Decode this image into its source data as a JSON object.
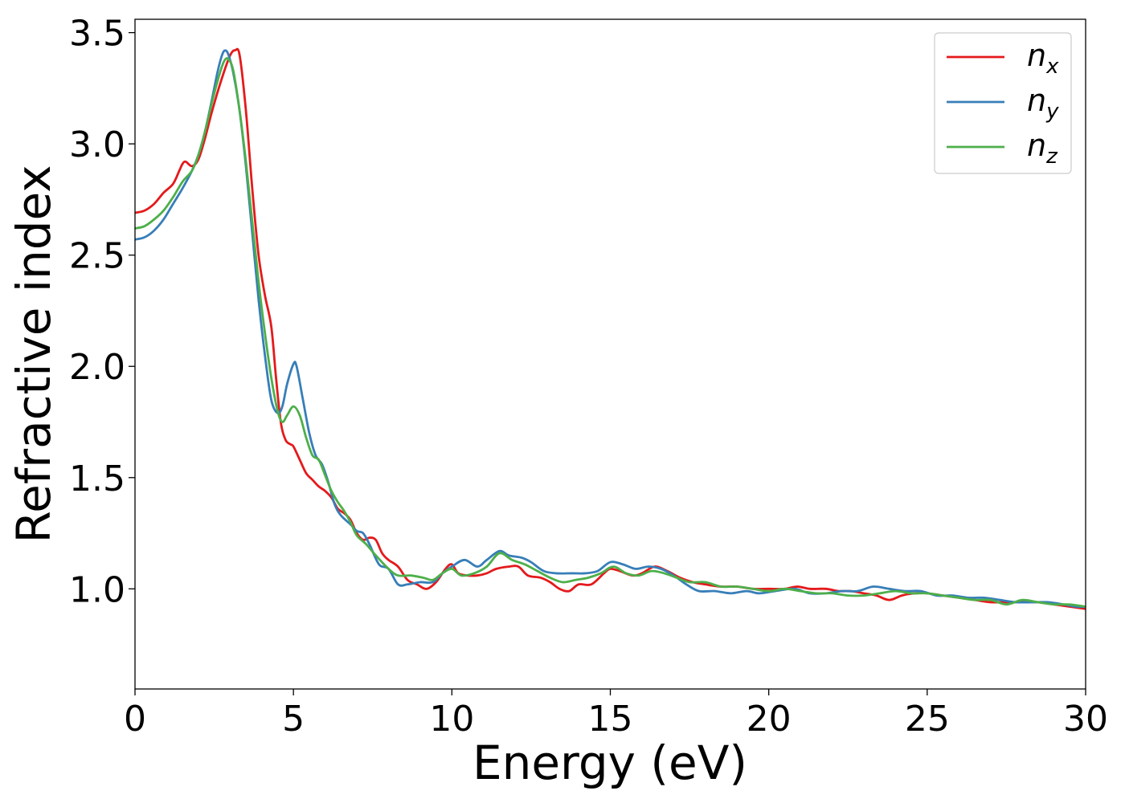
{
  "chart_data": {
    "type": "line",
    "xlabel": "Energy (eV)",
    "ylabel": "Refractive index",
    "xlim": [
      0,
      30
    ],
    "ylim": [
      0.55,
      3.56
    ],
    "xticks": [
      0,
      5,
      10,
      15,
      20,
      25,
      30
    ],
    "xtick_labels": [
      "0",
      "5",
      "10",
      "15",
      "20",
      "25",
      "30"
    ],
    "yticks": [
      1.0,
      1.5,
      2.0,
      2.5,
      3.0,
      3.5
    ],
    "ytick_labels": [
      "1.0",
      "1.5",
      "2.0",
      "2.5",
      "3.0",
      "3.5"
    ],
    "grid": false,
    "legend_position": "top-right",
    "series": [
      {
        "name": "n",
        "subscript": "x",
        "color": "#e41a1c",
        "points": [
          [
            0,
            2.69
          ],
          [
            0.3,
            2.7
          ],
          [
            0.6,
            2.73
          ],
          [
            0.9,
            2.78
          ],
          [
            1.2,
            2.82
          ],
          [
            1.4,
            2.88
          ],
          [
            1.5,
            2.91
          ],
          [
            1.6,
            2.92
          ],
          [
            1.8,
            2.9
          ],
          [
            2.0,
            2.93
          ],
          [
            2.2,
            3.02
          ],
          [
            2.4,
            3.13
          ],
          [
            2.6,
            3.23
          ],
          [
            2.8,
            3.32
          ],
          [
            2.95,
            3.38
          ],
          [
            3.05,
            3.41
          ],
          [
            3.15,
            3.42
          ],
          [
            3.3,
            3.4
          ],
          [
            3.5,
            3.15
          ],
          [
            3.7,
            2.8
          ],
          [
            3.9,
            2.5
          ],
          [
            4.1,
            2.32
          ],
          [
            4.3,
            2.18
          ],
          [
            4.45,
            1.95
          ],
          [
            4.6,
            1.75
          ],
          [
            4.75,
            1.67
          ],
          [
            4.9,
            1.65
          ],
          [
            5.0,
            1.64
          ],
          [
            5.2,
            1.58
          ],
          [
            5.4,
            1.52
          ],
          [
            5.6,
            1.49
          ],
          [
            5.8,
            1.46
          ],
          [
            6.0,
            1.44
          ],
          [
            6.2,
            1.41
          ],
          [
            6.4,
            1.36
          ],
          [
            6.6,
            1.34
          ],
          [
            6.8,
            1.31
          ],
          [
            7.0,
            1.25
          ],
          [
            7.2,
            1.22
          ],
          [
            7.4,
            1.23
          ],
          [
            7.6,
            1.22
          ],
          [
            7.8,
            1.16
          ],
          [
            8.0,
            1.13
          ],
          [
            8.3,
            1.1
          ],
          [
            8.6,
            1.04
          ],
          [
            8.9,
            1.02
          ],
          [
            9.2,
            1.0
          ],
          [
            9.5,
            1.03
          ],
          [
            9.8,
            1.09
          ],
          [
            10.0,
            1.11
          ],
          [
            10.2,
            1.07
          ],
          [
            10.5,
            1.06
          ],
          [
            10.8,
            1.06
          ],
          [
            11.1,
            1.07
          ],
          [
            11.4,
            1.09
          ],
          [
            11.8,
            1.1
          ],
          [
            12.1,
            1.1
          ],
          [
            12.4,
            1.06
          ],
          [
            12.8,
            1.05
          ],
          [
            13.1,
            1.03
          ],
          [
            13.4,
            1.0
          ],
          [
            13.7,
            0.99
          ],
          [
            14.0,
            1.02
          ],
          [
            14.4,
            1.02
          ],
          [
            14.8,
            1.07
          ],
          [
            15.0,
            1.09
          ],
          [
            15.3,
            1.08
          ],
          [
            15.7,
            1.06
          ],
          [
            16.0,
            1.07
          ],
          [
            16.4,
            1.1
          ],
          [
            16.8,
            1.08
          ],
          [
            17.2,
            1.05
          ],
          [
            17.6,
            1.03
          ],
          [
            18.0,
            1.02
          ],
          [
            18.5,
            1.01
          ],
          [
            19.0,
            1.01
          ],
          [
            19.5,
            1.0
          ],
          [
            20.0,
            1.0
          ],
          [
            20.5,
            1.0
          ],
          [
            20.9,
            1.01
          ],
          [
            21.3,
            1.0
          ],
          [
            21.8,
            1.0
          ],
          [
            22.2,
            0.99
          ],
          [
            22.6,
            0.99
          ],
          [
            23.0,
            0.98
          ],
          [
            23.4,
            0.97
          ],
          [
            23.8,
            0.95
          ],
          [
            24.2,
            0.97
          ],
          [
            24.6,
            0.98
          ],
          [
            25.0,
            0.98
          ],
          [
            25.5,
            0.97
          ],
          [
            26.0,
            0.96
          ],
          [
            26.5,
            0.95
          ],
          [
            27.0,
            0.94
          ],
          [
            27.5,
            0.94
          ],
          [
            28.0,
            0.94
          ],
          [
            28.5,
            0.94
          ],
          [
            29.0,
            0.93
          ],
          [
            29.5,
            0.92
          ],
          [
            30.0,
            0.91
          ]
        ]
      },
      {
        "name": "n",
        "subscript": "y",
        "color": "#377eb8",
        "points": [
          [
            0,
            2.57
          ],
          [
            0.3,
            2.58
          ],
          [
            0.6,
            2.61
          ],
          [
            0.9,
            2.66
          ],
          [
            1.2,
            2.73
          ],
          [
            1.5,
            2.8
          ],
          [
            1.8,
            2.88
          ],
          [
            2.0,
            2.95
          ],
          [
            2.2,
            3.05
          ],
          [
            2.4,
            3.18
          ],
          [
            2.6,
            3.32
          ],
          [
            2.75,
            3.4
          ],
          [
            2.85,
            3.42
          ],
          [
            2.95,
            3.4
          ],
          [
            3.1,
            3.32
          ],
          [
            3.3,
            3.15
          ],
          [
            3.5,
            2.9
          ],
          [
            3.7,
            2.6
          ],
          [
            3.9,
            2.3
          ],
          [
            4.1,
            2.05
          ],
          [
            4.3,
            1.85
          ],
          [
            4.5,
            1.79
          ],
          [
            4.65,
            1.82
          ],
          [
            4.8,
            1.92
          ],
          [
            5.0,
            2.01
          ],
          [
            5.1,
            2.0
          ],
          [
            5.3,
            1.85
          ],
          [
            5.5,
            1.7
          ],
          [
            5.7,
            1.6
          ],
          [
            5.9,
            1.56
          ],
          [
            6.1,
            1.48
          ],
          [
            6.3,
            1.38
          ],
          [
            6.5,
            1.33
          ],
          [
            6.8,
            1.29
          ],
          [
            7.0,
            1.26
          ],
          [
            7.2,
            1.25
          ],
          [
            7.4,
            1.2
          ],
          [
            7.7,
            1.11
          ],
          [
            8.0,
            1.09
          ],
          [
            8.3,
            1.02
          ],
          [
            8.6,
            1.02
          ],
          [
            9.0,
            1.03
          ],
          [
            9.4,
            1.03
          ],
          [
            9.7,
            1.07
          ],
          [
            10.0,
            1.1
          ],
          [
            10.4,
            1.13
          ],
          [
            10.8,
            1.1
          ],
          [
            11.1,
            1.13
          ],
          [
            11.5,
            1.17
          ],
          [
            11.8,
            1.15
          ],
          [
            12.2,
            1.14
          ],
          [
            12.5,
            1.12
          ],
          [
            12.9,
            1.08
          ],
          [
            13.3,
            1.07
          ],
          [
            13.8,
            1.07
          ],
          [
            14.2,
            1.07
          ],
          [
            14.6,
            1.08
          ],
          [
            15.0,
            1.12
          ],
          [
            15.4,
            1.11
          ],
          [
            15.8,
            1.09
          ],
          [
            16.2,
            1.1
          ],
          [
            16.6,
            1.09
          ],
          [
            17.0,
            1.06
          ],
          [
            17.4,
            1.02
          ],
          [
            17.8,
            0.99
          ],
          [
            18.3,
            0.99
          ],
          [
            18.8,
            0.98
          ],
          [
            19.3,
            0.99
          ],
          [
            19.7,
            0.98
          ],
          [
            20.2,
            0.99
          ],
          [
            20.8,
            1.0
          ],
          [
            21.3,
            0.98
          ],
          [
            21.8,
            0.98
          ],
          [
            22.3,
            0.99
          ],
          [
            22.8,
            0.99
          ],
          [
            23.3,
            1.01
          ],
          [
            23.8,
            1.0
          ],
          [
            24.3,
            0.99
          ],
          [
            24.8,
            0.99
          ],
          [
            25.3,
            0.97
          ],
          [
            25.8,
            0.97
          ],
          [
            26.3,
            0.96
          ],
          [
            26.8,
            0.96
          ],
          [
            27.3,
            0.95
          ],
          [
            27.8,
            0.94
          ],
          [
            28.3,
            0.94
          ],
          [
            28.8,
            0.94
          ],
          [
            29.3,
            0.93
          ],
          [
            29.7,
            0.92
          ],
          [
            30.0,
            0.92
          ]
        ]
      },
      {
        "name": "n",
        "subscript": "z",
        "color": "#4daf4a",
        "points": [
          [
            0,
            2.62
          ],
          [
            0.3,
            2.63
          ],
          [
            0.6,
            2.66
          ],
          [
            0.9,
            2.7
          ],
          [
            1.2,
            2.76
          ],
          [
            1.5,
            2.83
          ],
          [
            1.8,
            2.88
          ],
          [
            2.0,
            2.95
          ],
          [
            2.2,
            3.05
          ],
          [
            2.4,
            3.17
          ],
          [
            2.6,
            3.28
          ],
          [
            2.75,
            3.35
          ],
          [
            2.85,
            3.38
          ],
          [
            2.95,
            3.38
          ],
          [
            3.1,
            3.33
          ],
          [
            3.3,
            3.15
          ],
          [
            3.5,
            2.92
          ],
          [
            3.7,
            2.65
          ],
          [
            3.9,
            2.38
          ],
          [
            4.1,
            2.15
          ],
          [
            4.3,
            1.95
          ],
          [
            4.5,
            1.8
          ],
          [
            4.65,
            1.75
          ],
          [
            4.8,
            1.78
          ],
          [
            5.0,
            1.82
          ],
          [
            5.2,
            1.78
          ],
          [
            5.4,
            1.68
          ],
          [
            5.6,
            1.6
          ],
          [
            5.8,
            1.58
          ],
          [
            6.0,
            1.51
          ],
          [
            6.2,
            1.44
          ],
          [
            6.4,
            1.39
          ],
          [
            6.6,
            1.35
          ],
          [
            6.8,
            1.3
          ],
          [
            7.0,
            1.24
          ],
          [
            7.3,
            1.2
          ],
          [
            7.6,
            1.15
          ],
          [
            8.0,
            1.09
          ],
          [
            8.3,
            1.06
          ],
          [
            8.7,
            1.06
          ],
          [
            9.1,
            1.05
          ],
          [
            9.4,
            1.04
          ],
          [
            9.7,
            1.07
          ],
          [
            10.0,
            1.09
          ],
          [
            10.3,
            1.06
          ],
          [
            10.7,
            1.07
          ],
          [
            11.1,
            1.1
          ],
          [
            11.5,
            1.16
          ],
          [
            11.9,
            1.13
          ],
          [
            12.3,
            1.11
          ],
          [
            12.7,
            1.08
          ],
          [
            13.1,
            1.05
          ],
          [
            13.5,
            1.03
          ],
          [
            13.9,
            1.04
          ],
          [
            14.3,
            1.05
          ],
          [
            14.7,
            1.07
          ],
          [
            15.1,
            1.1
          ],
          [
            15.5,
            1.07
          ],
          [
            15.9,
            1.06
          ],
          [
            16.3,
            1.08
          ],
          [
            16.7,
            1.07
          ],
          [
            17.1,
            1.05
          ],
          [
            17.5,
            1.03
          ],
          [
            18.0,
            1.03
          ],
          [
            18.5,
            1.01
          ],
          [
            19.0,
            1.01
          ],
          [
            19.5,
            1.0
          ],
          [
            20.0,
            0.99
          ],
          [
            20.5,
            1.0
          ],
          [
            21.0,
            0.99
          ],
          [
            21.5,
            0.98
          ],
          [
            22.0,
            0.98
          ],
          [
            22.5,
            0.97
          ],
          [
            23.0,
            0.97
          ],
          [
            23.5,
            0.98
          ],
          [
            24.0,
            0.99
          ],
          [
            24.5,
            0.98
          ],
          [
            25.0,
            0.98
          ],
          [
            25.5,
            0.97
          ],
          [
            26.0,
            0.96
          ],
          [
            26.5,
            0.95
          ],
          [
            27.0,
            0.95
          ],
          [
            27.5,
            0.93
          ],
          [
            28.0,
            0.95
          ],
          [
            28.5,
            0.94
          ],
          [
            29.0,
            0.93
          ],
          [
            29.5,
            0.93
          ],
          [
            30.0,
            0.92
          ]
        ]
      }
    ]
  }
}
